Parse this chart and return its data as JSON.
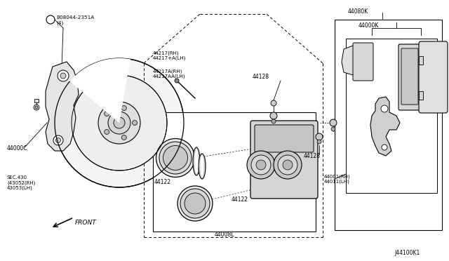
{
  "background_color": "#ffffff",
  "figsize": [
    6.4,
    3.72
  ],
  "dpi": 100,
  "labels": {
    "bolt": "B08044-2351A\n(4)",
    "part_44000C": "44000C",
    "sec430": "SEC.430\n(43052(RH)\n43053(LH)",
    "part_44217_rh": "44217(RH)\n44217+A(LH)",
    "part_44217A": "44217A(RH)\n44217AA(LH)",
    "part_44128": "44128",
    "part_44128b": "44128",
    "part_44122_a": "44122",
    "part_44122_b": "44122",
    "part_44008L": "44008L",
    "part_44080K": "44080K",
    "part_44000K": "44000K",
    "part_44001": "44001(RH)\n44011(LH)",
    "front_arrow": "FRONT",
    "diagram_id": "J44100K1"
  }
}
